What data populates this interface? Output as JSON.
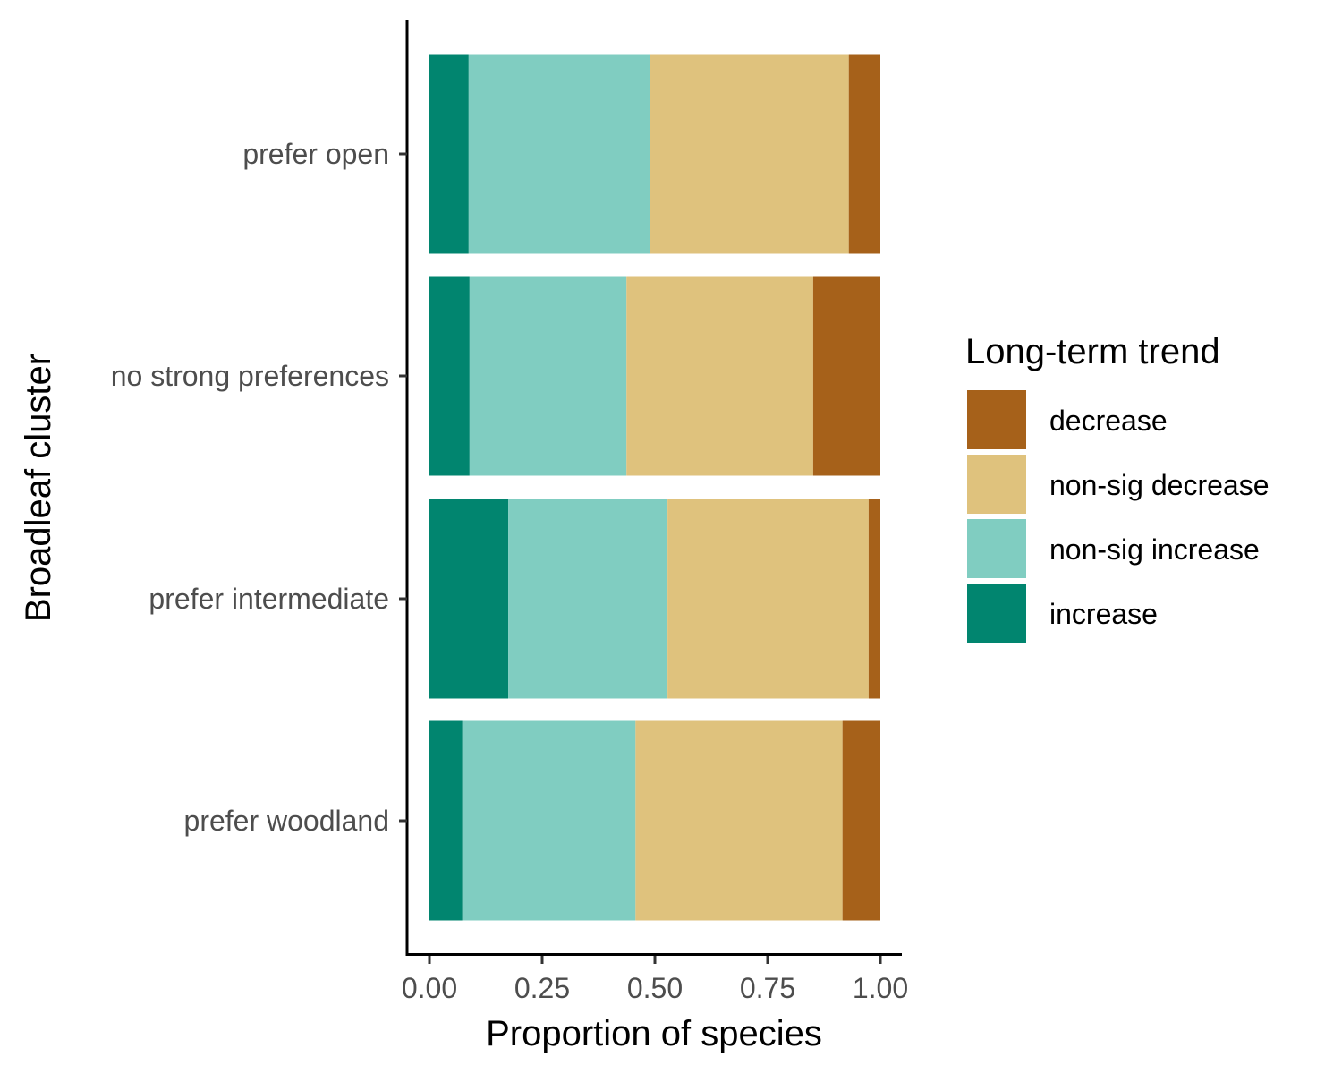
{
  "chart_data": {
    "type": "bar",
    "orientation": "horizontal",
    "stacked": true,
    "title": "",
    "xlabel": "Proportion of species",
    "ylabel": "Broadleaf cluster",
    "xlim": [
      0,
      1
    ],
    "xticks": [
      "0.00",
      "0.25",
      "0.50",
      "0.75",
      "1.00"
    ],
    "grid": false,
    "categories": [
      "prefer open",
      "no strong preferences",
      "prefer intermediate",
      "prefer woodland"
    ],
    "series": [
      {
        "name": "increase",
        "color": "#01856F",
        "values": [
          0.087,
          0.089,
          0.175,
          0.073
        ]
      },
      {
        "name": "non-sig increase",
        "color": "#80CDC1",
        "values": [
          0.403,
          0.348,
          0.353,
          0.384
        ]
      },
      {
        "name": "non-sig decrease",
        "color": "#DFC27D",
        "values": [
          0.44,
          0.414,
          0.446,
          0.459
        ]
      },
      {
        "name": "decrease",
        "color": "#A6611A",
        "values": [
          0.07,
          0.149,
          0.026,
          0.084
        ]
      }
    ],
    "legend": {
      "title": "Long-term trend",
      "placement": "right",
      "order": [
        "decrease",
        "non-sig decrease",
        "non-sig increase",
        "increase"
      ]
    }
  }
}
